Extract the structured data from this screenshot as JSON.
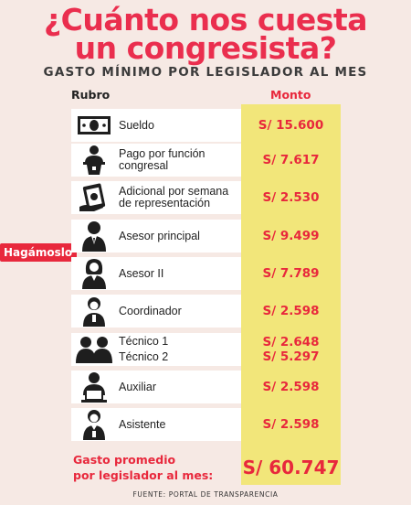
{
  "title_line1": "¿Cuánto nos cuesta",
  "title_line2": "un congresista?",
  "subtitle": "GASTO MÍNIMO POR LEGISLADOR AL MES",
  "headers": {
    "rubro": "Rubro",
    "monto": "Monto"
  },
  "tag": "Hagámoslo",
  "rows": [
    {
      "icon": "money-icon",
      "label_lines": [
        "Sueldo"
      ],
      "amounts": [
        "S/ 15.600"
      ]
    },
    {
      "icon": "speaker-podium-icon",
      "label_lines": [
        "Pago por función",
        "congresal"
      ],
      "amounts": [
        "S/ 7.617"
      ]
    },
    {
      "icon": "cash-bundle-icon",
      "label_lines": [
        "Adicional por semana",
        "de representación"
      ],
      "amounts": [
        "S/ 2.530"
      ]
    },
    {
      "icon": "person-suit-icon",
      "label_lines": [
        "Asesor principal"
      ],
      "amounts": [
        "S/ 9.499"
      ]
    },
    {
      "icon": "person-woman-icon",
      "label_lines": [
        "Asesor II"
      ],
      "amounts": [
        "S/ 7.789"
      ]
    },
    {
      "icon": "person-coordinator-icon",
      "label_lines": [
        "Coordinador"
      ],
      "amounts": [
        "S/ 2.598"
      ]
    },
    {
      "icon": "two-people-icon",
      "label_lines": [
        "Técnico 1",
        "Técnico 2"
      ],
      "amounts": [
        "S/ 2.648",
        "S/ 5.297"
      ]
    },
    {
      "icon": "person-laptop-icon",
      "label_lines": [
        "Auxiliar"
      ],
      "amounts": [
        "S/ 2.598"
      ]
    },
    {
      "icon": "person-tie-icon",
      "label_lines": [
        "Asistente"
      ],
      "amounts": [
        "S/ 2.598"
      ]
    }
  ],
  "total_label_lines": [
    "Gasto promedio",
    "por legislador al mes:"
  ],
  "total_value": "S/ 60.747",
  "source": "FUENTE: PORTAL DE TRANSPARENCIA",
  "colors": {
    "accent": "#e8283c",
    "highlight": "#f2e67a",
    "background": "#f6e9e4"
  }
}
